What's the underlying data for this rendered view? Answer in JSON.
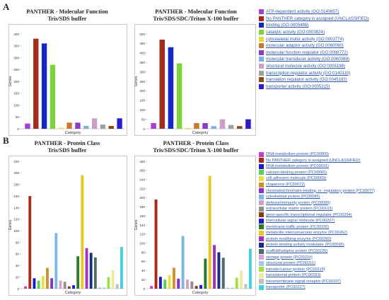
{
  "panels": [
    {
      "letter": "A",
      "charts": [
        {
          "title": "PANTHER - Molecular Function",
          "subtitle": "Tris/SDS buffer",
          "ylabel": "Genes",
          "xlabel": "Category"
        },
        {
          "title": "PANTHER - Molecular Function",
          "subtitle": "Tris/SDS/SDC/Triton X-100 buffer",
          "ylabel": "Genes",
          "xlabel": "Category"
        }
      ],
      "legend": [
        {
          "label": "ATP-dependent activity (GO:0140657)",
          "color": "#a83fd0"
        },
        {
          "label": "No PANTHER category is assigned (UNCLASSIFIED)",
          "color": "#a52a1a"
        },
        {
          "label": "binding (GO:0005488)",
          "color": "#1428c8"
        },
        {
          "label": "catalytic activity (GO:0003824)",
          "color": "#7cd43a"
        },
        {
          "label": "cytoskeletal motor activity (GO:0003774)",
          "color": "#e8d83a"
        },
        {
          "label": "molecular adaptor activity (GO:0060090)",
          "color": "#c87a30"
        },
        {
          "label": "molecular function regulator (GO:0098772)",
          "color": "#8a3cc8"
        },
        {
          "label": "molecular transducer activity (GO:0060089)",
          "color": "#7ab0e0"
        },
        {
          "label": "structural molecule activity (GO:0005198)",
          "color": "#c8a0c8"
        },
        {
          "label": "transcription regulator activity (GO:0140110)",
          "color": "#a0a0a0"
        },
        {
          "label": "translation regulator activity (GO:0045182)",
          "color": "#8a4a1a"
        },
        {
          "label": "transporter activity (GO:0005215)",
          "color": "#2a1ad0"
        }
      ]
    },
    {
      "letter": "B",
      "charts": [
        {
          "title": "PANTHER - Protein Class",
          "subtitle": "Tris/SDS buffer",
          "ylabel": "Genes",
          "xlabel": "Category"
        },
        {
          "title": "PANTHER - Protein Class",
          "subtitle": "Tris/SDS/SDC/Triton X-100 buffer",
          "ylabel": "Genes",
          "xlabel": "Category"
        }
      ],
      "legend": [
        {
          "label": "DNA metabolism protein (PC00009)",
          "color": "#c83ac8"
        },
        {
          "label": "No PANTHER category is assigned (UNCLASSIFIED)",
          "color": "#a52a1a"
        },
        {
          "label": "RNA metabolism protein (PC00031)",
          "color": "#1a1ac8"
        },
        {
          "label": "calcium-binding protein (PC00060)",
          "color": "#5ad05a"
        },
        {
          "label": "cell adhesion molecule (PC00069)",
          "color": "#e8e040"
        },
        {
          "label": "chaperone (PC00072)",
          "color": "#d09030"
        },
        {
          "label": "chromatin/chromatin-binding, or -regulatory protein (PC00077)",
          "color": "#8a30c8"
        },
        {
          "label": "cytoskeletal protein (PC00085)",
          "color": "#7ab8e8"
        },
        {
          "label": "defense/immunity protein (PC00090)",
          "color": "#d0a0c8"
        },
        {
          "label": "extracellular matrix protein (PC00102)",
          "color": "#909090"
        },
        {
          "label": "gene-specific transcriptional regulator (PC00264)",
          "color": "#8a3a1a"
        },
        {
          "label": "intercellular signal molecule (PC00207)",
          "color": "#1a1ad0"
        },
        {
          "label": "membrane traffic protein (PC00150)",
          "color": "#2a7a2a"
        },
        {
          "label": "metabolite interconversion enzyme (PC00262)",
          "color": "#e8c820"
        },
        {
          "label": "protein modifying enzyme (PC00260)",
          "color": "#a030c8"
        },
        {
          "label": "protein-binding activity modulator (PC00095)",
          "color": "#1a2a8a"
        },
        {
          "label": "scaffold/adaptor protein (PC00226)",
          "color": "#506a6a"
        },
        {
          "label": "storage protein (PC00210)",
          "color": "#e0a0d0"
        },
        {
          "label": "structural protein (PC00211)",
          "color": "#a0c8e8"
        },
        {
          "label": "transfer/carrier protein (PC00219)",
          "color": "#a0e040"
        },
        {
          "label": "translational protein (PC00263)",
          "color": "#f0e8a0"
        },
        {
          "label": "transmembrane signal receptor (PC00197)",
          "color": "#c0c0c0"
        },
        {
          "label": "transporter (PC00227)",
          "color": "#40d0e0"
        }
      ]
    }
  ],
  "chart_data": [
    {
      "type": "bar",
      "title": "PANTHER - Molecular Function",
      "subtitle": "Tris/SDS buffer",
      "xlabel": "Category",
      "ylabel": "Genes",
      "ylim": [
        0,
        400
      ],
      "yticks": [
        0,
        50,
        100,
        150,
        200,
        250,
        300,
        350,
        400
      ],
      "categories": [
        "ATP-dependent activity (GO:0140657)",
        "No PANTHER category is assigned (UNCLASSIFIED)",
        "binding (GO:0005488)",
        "catalytic activity (GO:0003824)",
        "cytoskeletal motor activity (GO:0003774)",
        "molecular adaptor activity (GO:0060090)",
        "molecular function regulator (GO:0098772)",
        "molecular transducer activity (GO:0060089)",
        "structural molecule activity (GO:0005198)",
        "transcription regulator activity (GO:0140110)",
        "translation regulator activity (GO:0045182)",
        "transporter activity (GO:0005215)"
      ],
      "values": [
        22,
        380,
        360,
        270,
        4,
        26,
        26,
        12,
        44,
        18,
        12,
        44
      ],
      "colors": [
        "#a83fd0",
        "#a52a1a",
        "#1428c8",
        "#7cd43a",
        "#e8d83a",
        "#c87a30",
        "#8a3cc8",
        "#7ab0e0",
        "#c8a0c8",
        "#a0a0a0",
        "#8a4a1a",
        "#2a1ad0"
      ],
      "grid": false
    },
    {
      "type": "bar",
      "title": "PANTHER - Molecular Function",
      "subtitle": "Tris/SDS/SDC/Triton X-100 buffer",
      "xlabel": "Category",
      "ylabel": "Genes",
      "ylim": [
        0,
        500
      ],
      "yticks": [
        0,
        50,
        100,
        150,
        200,
        250,
        300,
        350,
        400,
        450,
        500
      ],
      "categories": [
        "ATP-dependent activity (GO:0140657)",
        "No PANTHER category is assigned (UNCLASSIFIED)",
        "binding (GO:0005488)",
        "catalytic activity (GO:0003824)",
        "cytoskeletal motor activity (GO:0003774)",
        "molecular adaptor activity (GO:0060090)",
        "molecular function regulator (GO:0098772)",
        "molecular transducer activity (GO:0060089)",
        "structural molecule activity (GO:0005198)",
        "transcription regulator activity (GO:0140110)",
        "translation regulator activity (GO:0045182)",
        "transporter activity (GO:0005215)"
      ],
      "values": [
        30,
        470,
        430,
        345,
        4,
        30,
        30,
        14,
        50,
        20,
        14,
        50
      ],
      "colors": [
        "#a83fd0",
        "#a52a1a",
        "#1428c8",
        "#7cd43a",
        "#e8d83a",
        "#c87a30",
        "#8a3cc8",
        "#7ab0e0",
        "#c8a0c8",
        "#a0a0a0",
        "#8a4a1a",
        "#2a1ad0"
      ],
      "grid": false
    },
    {
      "type": "bar",
      "title": "PANTHER - Protein Class",
      "subtitle": "Tris/SDS buffer",
      "xlabel": "Category",
      "ylabel": "Genes",
      "ylim": [
        0,
        220
      ],
      "yticks": [
        0,
        20,
        40,
        60,
        80,
        100,
        120,
        140,
        160,
        180,
        200,
        220
      ],
      "categories": [
        "DNA metabolism protein (PC00009)",
        "No PANTHER category is assigned (UNCLASSIFIED)",
        "RNA metabolism protein (PC00031)",
        "calcium-binding protein (PC00060)",
        "cell adhesion molecule (PC00069)",
        "chaperone (PC00072)",
        "chromatin/chromatin-binding, or -regulatory protein (PC00077)",
        "cytoskeletal protein (PC00085)",
        "defense/immunity protein (PC00090)",
        "extracellular matrix protein (PC00102)",
        "gene-specific transcriptional regulator (PC00264)",
        "intercellular signal molecule (PC00207)",
        "membrane traffic protein (PC00150)",
        "metabolite interconversion enzyme (PC00262)",
        "protein modifying enzyme (PC00260)",
        "protein-binding activity modulator (PC00095)",
        "scaffold/adaptor protein (PC00226)",
        "storage protein (PC00210)",
        "structural protein (PC00211)",
        "transfer/carrier protein (PC00219)",
        "translational protein (PC00263)",
        "transmembrane signal receptor (PC00197)",
        "transporter (PC00227)"
      ],
      "values": [
        4,
        160,
        18,
        14,
        22,
        36,
        18,
        96,
        14,
        12,
        4,
        6,
        56,
        196,
        70,
        62,
        54,
        2,
        2,
        20,
        32,
        8,
        72
      ],
      "colors": [
        "#c83ac8",
        "#a52a1a",
        "#1a1ac8",
        "#5ad05a",
        "#e8e040",
        "#d09030",
        "#8a30c8",
        "#7ab8e8",
        "#d0a0c8",
        "#909090",
        "#8a3a1a",
        "#1a1ad0",
        "#2a7a2a",
        "#e8c820",
        "#a030c8",
        "#1a2a8a",
        "#506a6a",
        "#e0a0d0",
        "#a0c8e8",
        "#a0e040",
        "#f0e8a0",
        "#c0c0c0",
        "#40d0e0"
      ],
      "grid": false
    },
    {
      "type": "bar",
      "title": "PANTHER - Protein Class",
      "subtitle": "Tris/SDS/SDC/Triton X-100 buffer",
      "xlabel": "Category",
      "ylabel": "Genes",
      "ylim": [
        0,
        280
      ],
      "yticks": [
        0,
        20,
        40,
        60,
        80,
        100,
        120,
        140,
        160,
        180,
        200,
        220,
        240,
        260,
        280
      ],
      "categories": [
        "DNA metabolism protein (PC00009)",
        "No PANTHER category is assigned (UNCLASSIFIED)",
        "RNA metabolism protein (PC00031)",
        "calcium-binding protein (PC00060)",
        "cell adhesion molecule (PC00069)",
        "chaperone (PC00072)",
        "chromatin/chromatin-binding, or -regulatory protein (PC00077)",
        "cytoskeletal protein (PC00085)",
        "defense/immunity protein (PC00090)",
        "extracellular matrix protein (PC00102)",
        "gene-specific transcriptional regulator (PC00264)",
        "intercellular signal molecule (PC00207)",
        "membrane traffic protein (PC00150)",
        "metabolite interconversion enzyme (PC00262)",
        "protein modifying enzyme (PC00260)",
        "protein-binding activity modulator (PC00095)",
        "scaffold/adaptor protein (PC00226)",
        "storage protein (PC00210)",
        "structural protein (PC00211)",
        "transfer/carrier protein (PC00219)",
        "translational protein (PC00263)",
        "transmembrane signal receptor (PC00197)",
        "transporter (PC00227)"
      ],
      "values": [
        6,
        196,
        26,
        20,
        30,
        46,
        22,
        116,
        20,
        16,
        6,
        8,
        66,
        248,
        96,
        80,
        68,
        2,
        2,
        24,
        40,
        10,
        88
      ],
      "colors": [
        "#c83ac8",
        "#a52a1a",
        "#1a1ac8",
        "#5ad05a",
        "#e8e040",
        "#d09030",
        "#8a30c8",
        "#7ab8e8",
        "#d0a0c8",
        "#909090",
        "#8a3a1a",
        "#1a1ad0",
        "#2a7a2a",
        "#e8c820",
        "#a030c8",
        "#1a2a8a",
        "#506a6a",
        "#e0a0d0",
        "#a0c8e8",
        "#a0e040",
        "#f0e8a0",
        "#c0c0c0",
        "#40d0e0"
      ],
      "grid": false
    }
  ]
}
